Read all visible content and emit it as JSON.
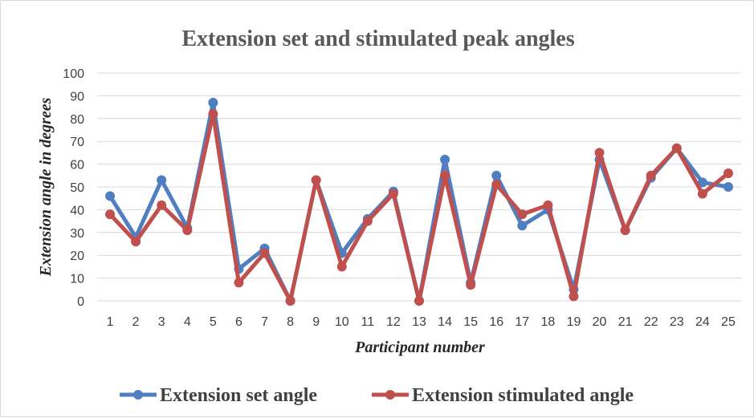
{
  "chart_data": {
    "type": "line",
    "title": "Extension set and stimulated peak angles",
    "xlabel": "Participant number",
    "ylabel": "Extension angle in degrees",
    "categories": [
      "1",
      "2",
      "3",
      "4",
      "5",
      "6",
      "7",
      "8",
      "9",
      "10",
      "11",
      "12",
      "13",
      "14",
      "15",
      "16",
      "17",
      "18",
      "19",
      "20",
      "21",
      "22",
      "23",
      "24",
      "25"
    ],
    "y_ticks": [
      "0",
      "10",
      "20",
      "30",
      "40",
      "50",
      "60",
      "70",
      "80",
      "90",
      "100"
    ],
    "ylim": [
      0,
      100
    ],
    "grid": true,
    "legend_position": "bottom",
    "series": [
      {
        "name": "Extension set angle",
        "color": "#4f7fc0",
        "values": [
          46,
          28,
          53,
          32,
          87,
          14,
          23,
          0,
          53,
          21,
          36,
          48,
          0,
          62,
          8,
          55,
          33,
          40,
          5,
          62,
          31,
          54,
          67,
          52,
          50
        ]
      },
      {
        "name": "Extension stimulated angle",
        "color": "#c0504d",
        "values": [
          38,
          26,
          42,
          31,
          82,
          8,
          21,
          0,
          53,
          15,
          35,
          47,
          0,
          55,
          7,
          51,
          38,
          42,
          2,
          65,
          31,
          55,
          67,
          47,
          56
        ]
      }
    ]
  }
}
